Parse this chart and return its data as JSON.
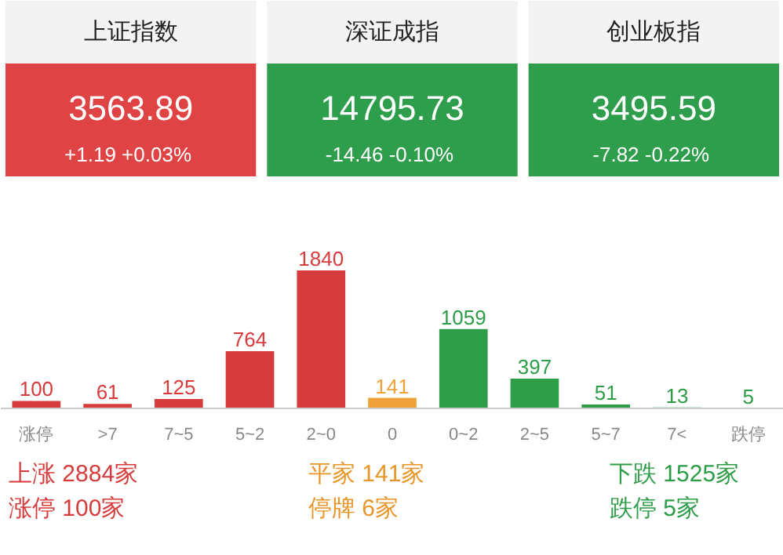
{
  "chart_data": [
    {
      "type": "other",
      "title": "上证指数",
      "annotations": [
        "3563.89",
        "+1.19  +0.03%"
      ],
      "color": "#e04343"
    },
    {
      "type": "other",
      "title": "深证成指",
      "annotations": [
        "14795.73",
        "-14.46  -0.10%"
      ],
      "color": "#2f9e4c"
    },
    {
      "type": "other",
      "title": "创业板指",
      "annotations": [
        "3495.59",
        "-7.82  -0.22%"
      ],
      "color": "#2f9e4c"
    },
    {
      "type": "bar",
      "categories": [
        "涨停",
        ">7",
        "7~5",
        "5~2",
        "2~0",
        "0",
        "0~2",
        "2~5",
        "5~7",
        "7<",
        "跌停"
      ],
      "values": [
        100,
        61,
        125,
        764,
        1840,
        141,
        1059,
        397,
        51,
        13,
        5
      ],
      "colors": [
        "#d83b3b",
        "#d83b3b",
        "#d83b3b",
        "#d83b3b",
        "#d83b3b",
        "#f0a23a",
        "#2e9d48",
        "#2e9d48",
        "#2e9d48",
        "#2e9d48",
        "#2e9d48"
      ],
      "data_labels": true,
      "annotations": [
        "上涨 2884家",
        "平家 141家",
        "下跌 1525家",
        "涨停 100家",
        "停牌 6家",
        "跌停 5家"
      ]
    }
  ]
}
